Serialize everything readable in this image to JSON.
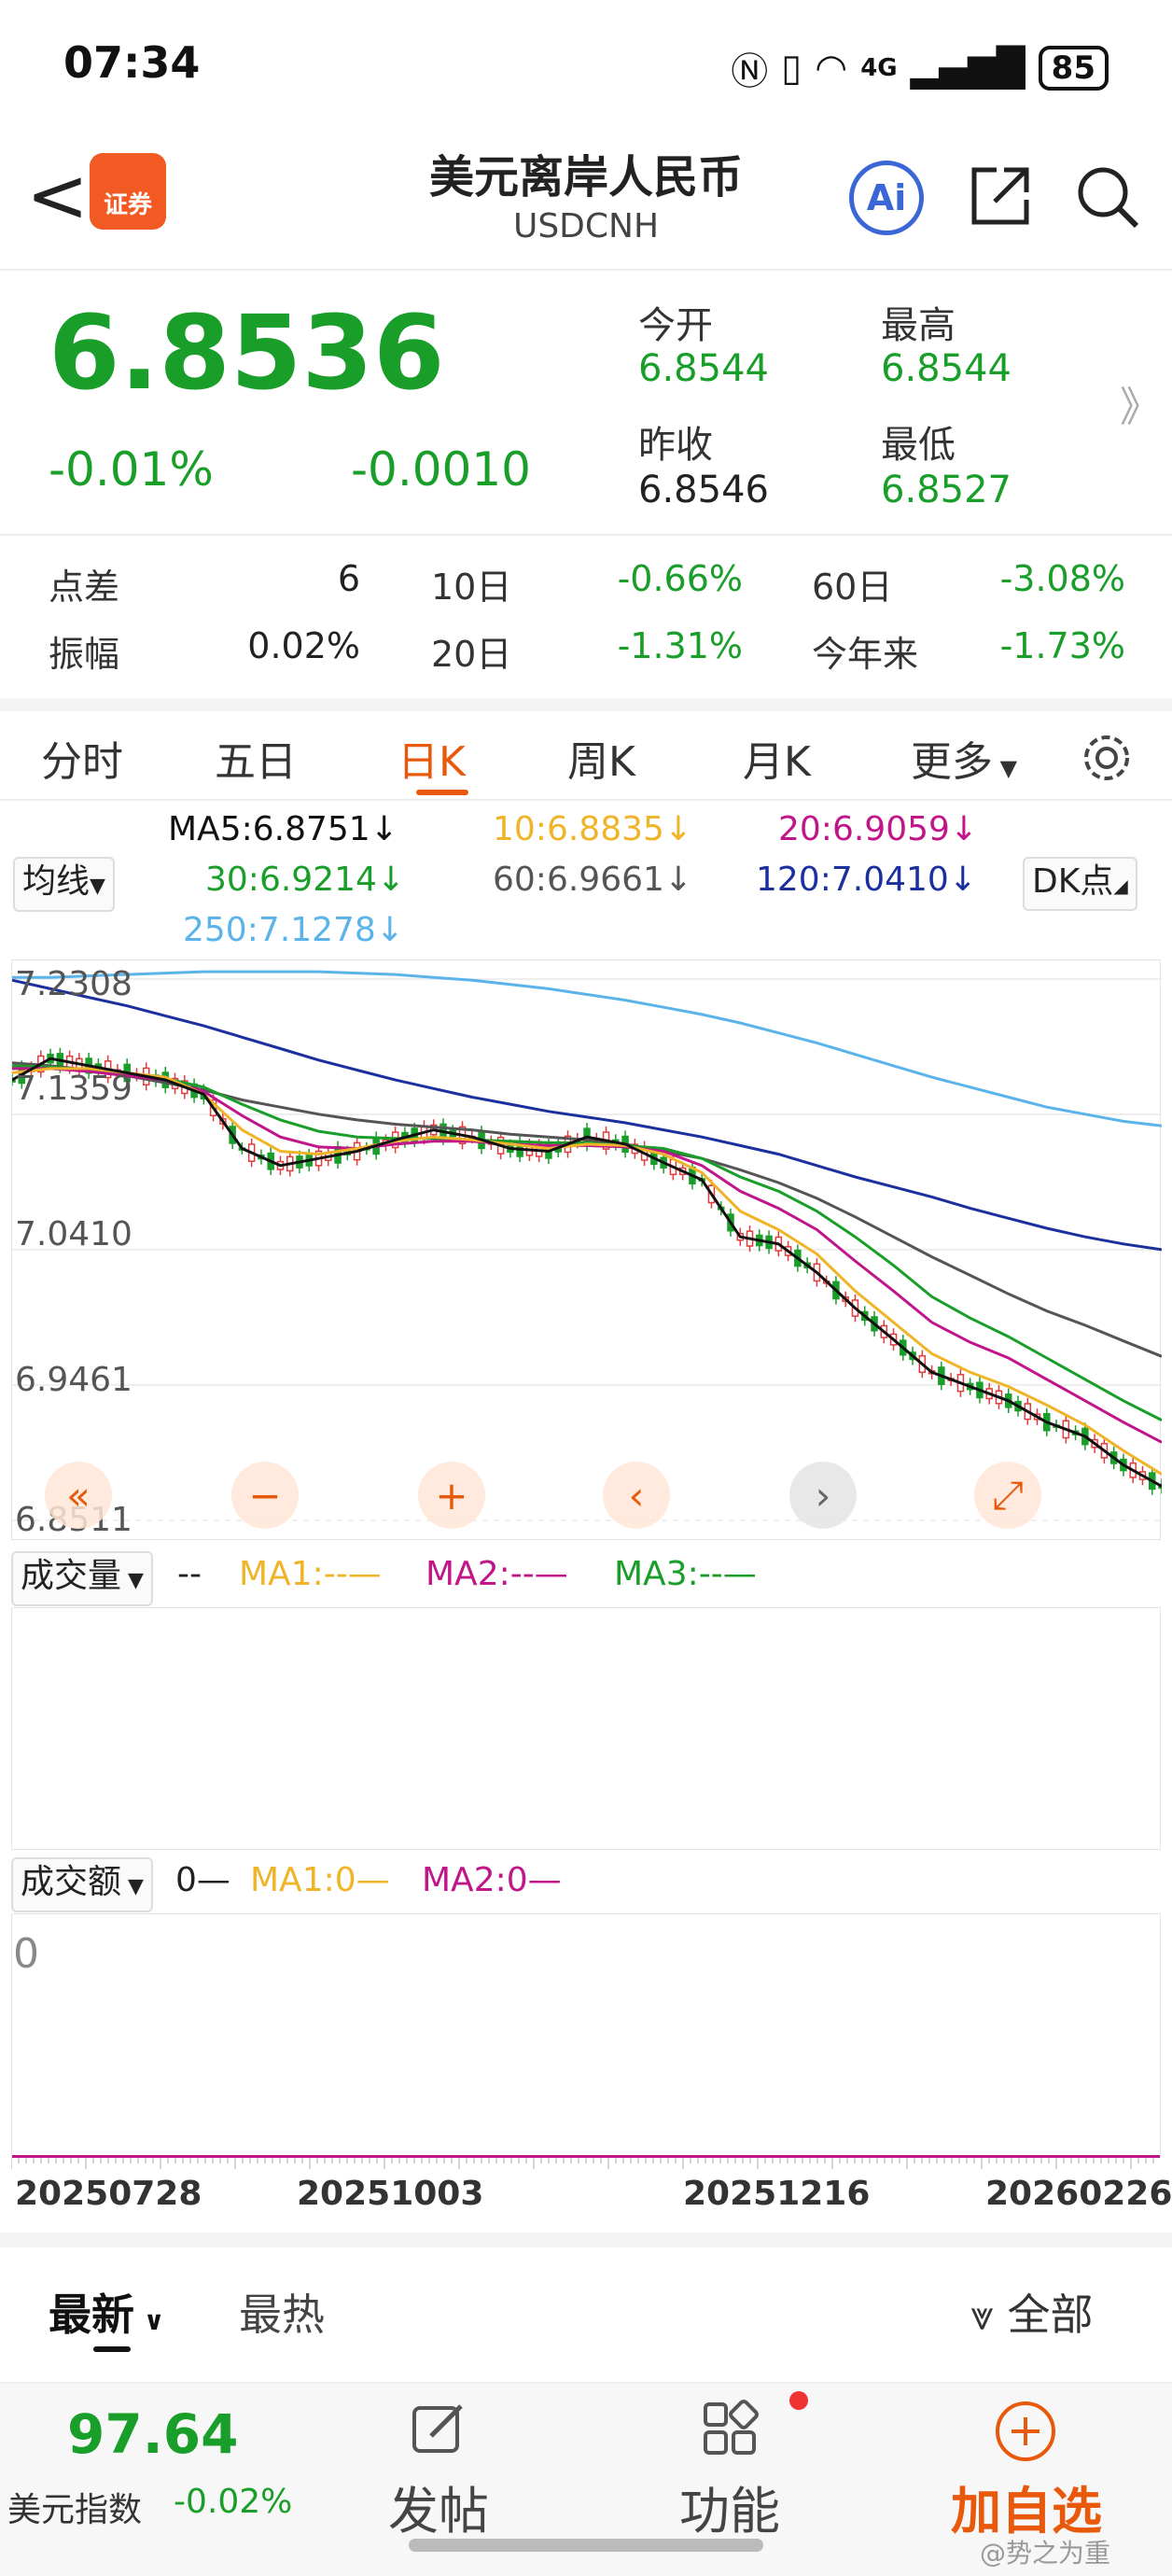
{
  "status_bar": {
    "time": "07:34",
    "battery": "85",
    "network": "4G"
  },
  "header": {
    "back": "<",
    "logo_text": "证券",
    "title": "美元离岸人民币",
    "subtitle": "USDCNH",
    "ai_label": "Ai"
  },
  "quote": {
    "price": "6.8536",
    "change_pct": "-0.01%",
    "change": "-0.0010",
    "open_label": "今开",
    "open": "6.8544",
    "high_label": "最高",
    "high": "6.8544",
    "prev_close_label": "昨收",
    "prev_close": "6.8546",
    "low_label": "最低",
    "low": "6.8527",
    "more": "》"
  },
  "stats": [
    {
      "label": "点差",
      "value": "6",
      "p_label": "10日",
      "p_value": "-0.66%",
      "q_label": "60日",
      "q_value": "-3.08%"
    },
    {
      "label": "振幅",
      "value": "0.02%",
      "p_label": "20日",
      "p_value": "-1.31%",
      "q_label": "今年来",
      "q_value": "-1.73%"
    }
  ],
  "tabs": [
    "分时",
    "五日",
    "日K",
    "周K",
    "月K",
    "更多"
  ],
  "active_tab": "日K",
  "ma_legend": {
    "selector": "均线",
    "dk": "DK点",
    "items": [
      {
        "text": "MA5:6.8751↓",
        "color": "#111111"
      },
      {
        "text": "10:6.8835↓",
        "color": "#f0b429"
      },
      {
        "text": "20:6.9059↓",
        "color": "#c0168a"
      },
      {
        "text": "30:6.9214↓",
        "color": "#1a9e2a"
      },
      {
        "text": "60:6.9661↓",
        "color": "#555555"
      },
      {
        "text": "120:7.0410↓",
        "color": "#1c2f9e"
      },
      {
        "text": "250:7.1278↓",
        "color": "#5ab4ea"
      }
    ]
  },
  "chart_data": {
    "type": "line",
    "y_ticks": [
      "7.2308",
      "7.1359",
      "7.0410",
      "6.9461",
      "6.8511"
    ],
    "ylim": [
      6.8511,
      7.2308
    ],
    "x_ticks": [
      "20250728",
      "20251003",
      "20251216",
      "20260226"
    ],
    "series": [
      {
        "name": "MA5",
        "color": "#111111",
        "values": [
          7.16,
          7.175,
          7.17,
          7.165,
          7.16,
          7.15,
          7.112,
          7.1,
          7.105,
          7.11,
          7.118,
          7.125,
          7.12,
          7.112,
          7.11,
          7.12,
          7.115,
          7.102,
          7.09,
          7.05,
          7.045,
          7.025,
          7.0,
          6.978,
          6.955,
          6.945,
          6.935,
          6.92,
          6.91,
          6.89,
          6.875
        ]
      },
      {
        "name": "10",
        "color": "#f0b429",
        "values": [
          7.165,
          7.168,
          7.168,
          7.165,
          7.162,
          7.15,
          7.125,
          7.11,
          7.108,
          7.112,
          7.117,
          7.12,
          7.118,
          7.115,
          7.112,
          7.115,
          7.114,
          7.108,
          7.095,
          7.068,
          7.055,
          7.038,
          7.012,
          6.99,
          6.968,
          6.955,
          6.945,
          6.932,
          6.918,
          6.9,
          6.8835
        ]
      },
      {
        "name": "20",
        "color": "#c0168a",
        "values": [
          7.168,
          7.168,
          7.166,
          7.163,
          7.16,
          7.152,
          7.135,
          7.12,
          7.113,
          7.112,
          7.115,
          7.117,
          7.117,
          7.115,
          7.114,
          7.114,
          7.113,
          7.11,
          7.1,
          7.082,
          7.07,
          7.055,
          7.033,
          7.012,
          6.99,
          6.976,
          6.965,
          6.95,
          6.935,
          6.92,
          6.9059
        ]
      },
      {
        "name": "30",
        "color": "#1a9e2a",
        "values": [
          7.17,
          7.169,
          7.167,
          7.164,
          7.161,
          7.155,
          7.143,
          7.132,
          7.124,
          7.12,
          7.119,
          7.119,
          7.118,
          7.117,
          7.116,
          7.116,
          7.114,
          7.112,
          7.105,
          7.092,
          7.082,
          7.068,
          7.05,
          7.03,
          7.008,
          6.993,
          6.98,
          6.965,
          6.95,
          6.935,
          6.9214
        ]
      },
      {
        "name": "60",
        "color": "#555555",
        "values": [
          7.172,
          7.17,
          7.167,
          7.163,
          7.158,
          7.153,
          7.146,
          7.141,
          7.136,
          7.132,
          7.129,
          7.127,
          7.125,
          7.122,
          7.12,
          7.118,
          7.115,
          7.11,
          7.105,
          7.097,
          7.088,
          7.077,
          7.064,
          7.05,
          7.036,
          7.023,
          7.01,
          6.998,
          6.988,
          6.977,
          6.9661
        ]
      },
      {
        "name": "120",
        "color": "#1c2f9e",
        "values": [
          7.23,
          7.224,
          7.218,
          7.212,
          7.205,
          7.198,
          7.19,
          7.182,
          7.174,
          7.167,
          7.16,
          7.154,
          7.148,
          7.143,
          7.138,
          7.134,
          7.13,
          7.125,
          7.12,
          7.114,
          7.108,
          7.1,
          7.092,
          7.085,
          7.078,
          7.07,
          7.063,
          7.056,
          7.05,
          7.045,
          7.041
        ]
      },
      {
        "name": "250",
        "color": "#5ab4ea",
        "values": [
          7.232,
          7.232,
          7.233,
          7.234,
          7.235,
          7.236,
          7.236,
          7.236,
          7.236,
          7.235,
          7.234,
          7.232,
          7.23,
          7.227,
          7.224,
          7.22,
          7.216,
          7.211,
          7.206,
          7.2,
          7.193,
          7.186,
          7.178,
          7.17,
          7.162,
          7.155,
          7.148,
          7.141,
          7.136,
          7.131,
          7.1278
        ]
      }
    ]
  },
  "controls": [
    "«",
    "−",
    "+",
    "‹",
    "›",
    "⤢"
  ],
  "volume": {
    "selector": "成交量",
    "value": "--",
    "ma1": "MA1:--—",
    "ma2": "MA2:--—",
    "ma3": "MA3:--—"
  },
  "turnover": {
    "selector": "成交额",
    "value": "0—",
    "ma1": "MA1:0—",
    "ma2": "MA2:0—",
    "axis": "0"
  },
  "filters": {
    "latest": "最新",
    "hot": "最热",
    "all": "全部"
  },
  "bottom_bar": {
    "index_value": "97.64",
    "index_name": "美元指数",
    "index_change": "-0.02%",
    "post": "发帖",
    "func": "功能",
    "add": "加自选"
  },
  "watermark": "@势之为重"
}
